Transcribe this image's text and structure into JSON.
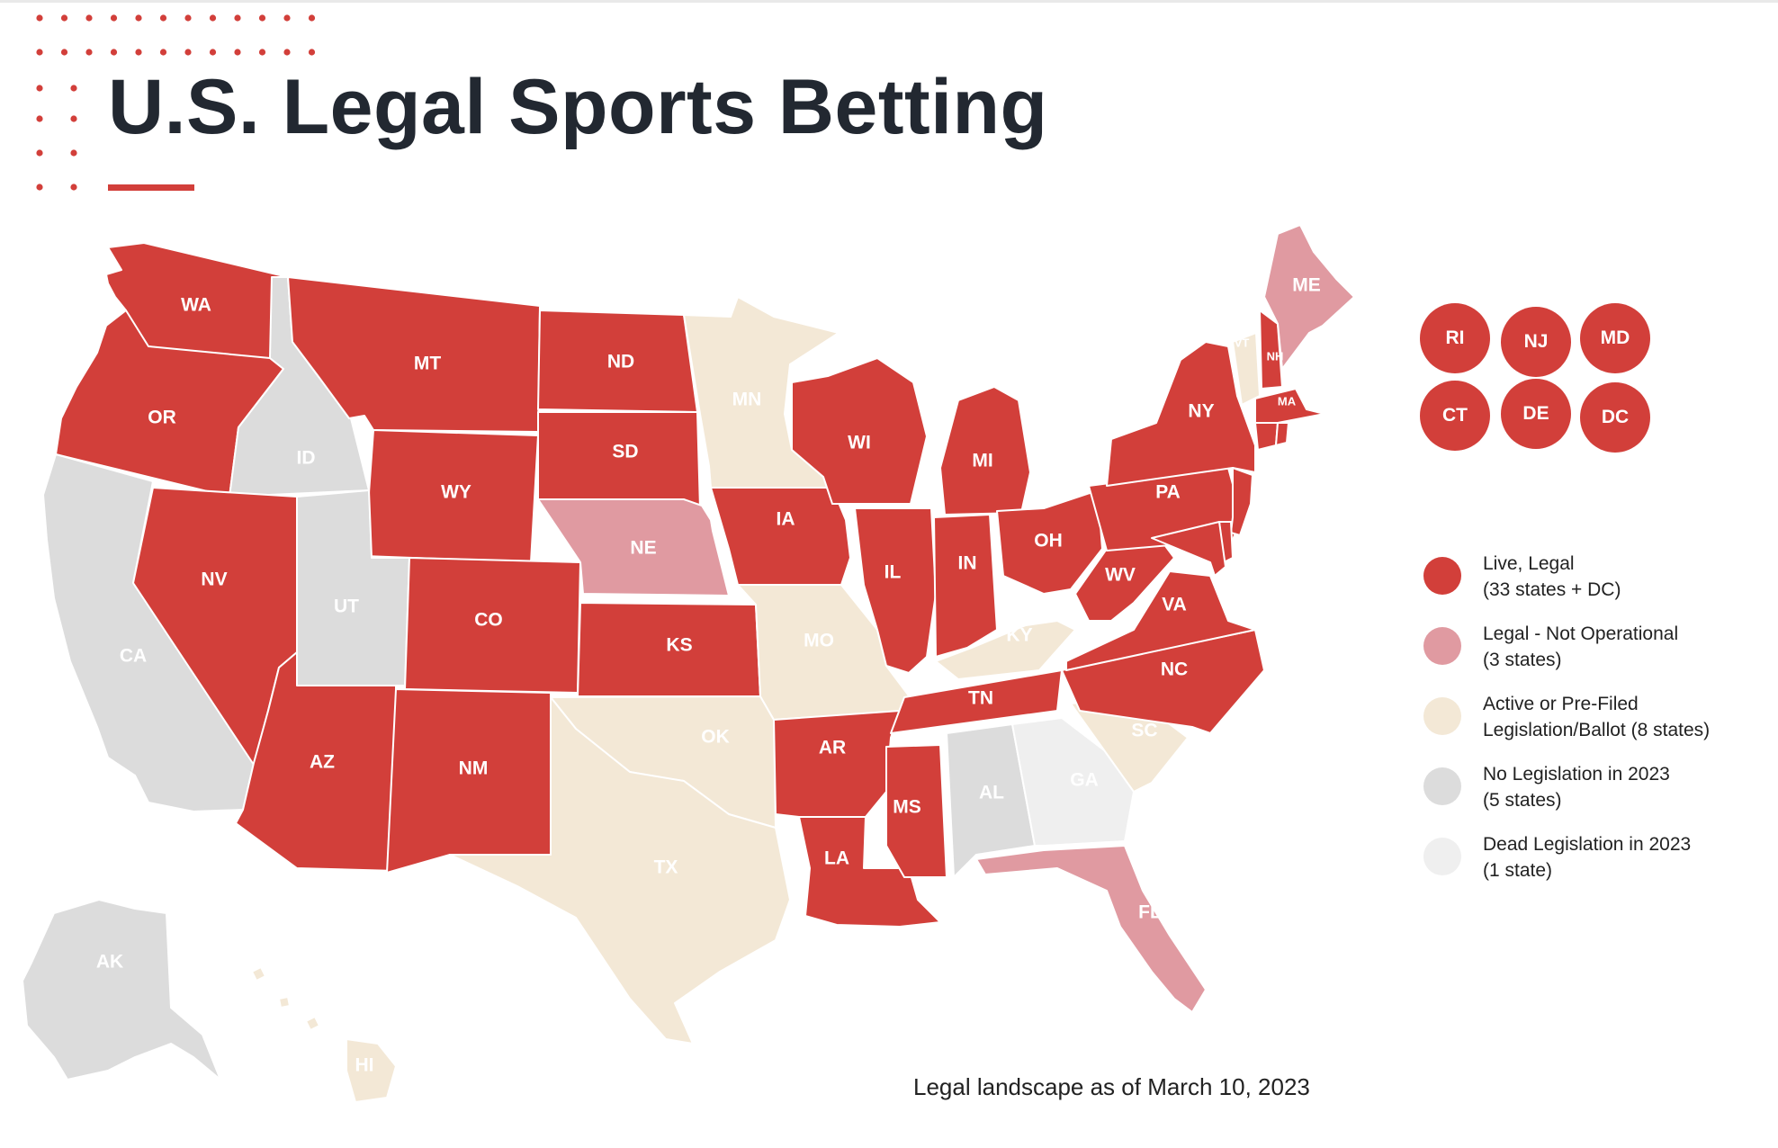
{
  "title": "U.S. Legal Sports Betting",
  "footnote": "Legal landscape as of March 10, 2023",
  "colors": {
    "live": "#d23f3a",
    "not_operational": "#e09aa1",
    "active": "#f3e8d6",
    "no_legislation": "#dcdcdc",
    "dead": "#efefef",
    "accent": "#d23f3a",
    "title": "#222831"
  },
  "legend": [
    {
      "status": "live",
      "line1": "Live, Legal",
      "line2": "(33 states + DC)"
    },
    {
      "status": "not_operational",
      "line1": "Legal - Not Operational",
      "line2": "(3 states)"
    },
    {
      "status": "active",
      "line1": "Active or Pre-Filed",
      "line2": "Legislation/Ballot (8 states)"
    },
    {
      "status": "no_legislation",
      "line1": "No Legislation in 2023",
      "line2": "(5 states)"
    },
    {
      "status": "dead",
      "line1": "Dead Legislation in 2023",
      "line2": "(1 state)"
    }
  ],
  "small_states": [
    "RI",
    "NJ",
    "MD",
    "CT",
    "DE",
    "DC"
  ],
  "states": [
    {
      "code": "WA",
      "status": "live"
    },
    {
      "code": "OR",
      "status": "live"
    },
    {
      "code": "CA",
      "status": "no_legislation"
    },
    {
      "code": "ID",
      "status": "no_legislation"
    },
    {
      "code": "NV",
      "status": "live"
    },
    {
      "code": "MT",
      "status": "live"
    },
    {
      "code": "WY",
      "status": "live"
    },
    {
      "code": "UT",
      "status": "no_legislation"
    },
    {
      "code": "AZ",
      "status": "live"
    },
    {
      "code": "CO",
      "status": "live"
    },
    {
      "code": "NM",
      "status": "live"
    },
    {
      "code": "ND",
      "status": "live"
    },
    {
      "code": "SD",
      "status": "live"
    },
    {
      "code": "NE",
      "status": "not_operational"
    },
    {
      "code": "KS",
      "status": "live"
    },
    {
      "code": "OK",
      "status": "active"
    },
    {
      "code": "TX",
      "status": "active"
    },
    {
      "code": "MN",
      "status": "active"
    },
    {
      "code": "IA",
      "status": "live"
    },
    {
      "code": "MO",
      "status": "active"
    },
    {
      "code": "AR",
      "status": "live"
    },
    {
      "code": "LA",
      "status": "live"
    },
    {
      "code": "WI",
      "status": "live"
    },
    {
      "code": "IL",
      "status": "live"
    },
    {
      "code": "MS",
      "status": "live"
    },
    {
      "code": "MI",
      "status": "live"
    },
    {
      "code": "IN",
      "status": "live"
    },
    {
      "code": "KY",
      "status": "active"
    },
    {
      "code": "TN",
      "status": "live"
    },
    {
      "code": "AL",
      "status": "no_legislation"
    },
    {
      "code": "OH",
      "status": "live"
    },
    {
      "code": "GA",
      "status": "dead"
    },
    {
      "code": "FL",
      "status": "not_operational"
    },
    {
      "code": "SC",
      "status": "active"
    },
    {
      "code": "NC",
      "status": "live"
    },
    {
      "code": "VA",
      "status": "live"
    },
    {
      "code": "WV",
      "status": "live"
    },
    {
      "code": "PA",
      "status": "live"
    },
    {
      "code": "NY",
      "status": "live"
    },
    {
      "code": "VT",
      "status": "active"
    },
    {
      "code": "NH",
      "status": "live"
    },
    {
      "code": "ME",
      "status": "not_operational"
    },
    {
      "code": "MA",
      "status": "live"
    },
    {
      "code": "CT",
      "status": "live"
    },
    {
      "code": "RI",
      "status": "live"
    },
    {
      "code": "NJ",
      "status": "live"
    },
    {
      "code": "DE",
      "status": "live"
    },
    {
      "code": "MD",
      "status": "live"
    },
    {
      "code": "AK",
      "status": "no_legislation"
    },
    {
      "code": "HI",
      "status": "active"
    }
  ]
}
